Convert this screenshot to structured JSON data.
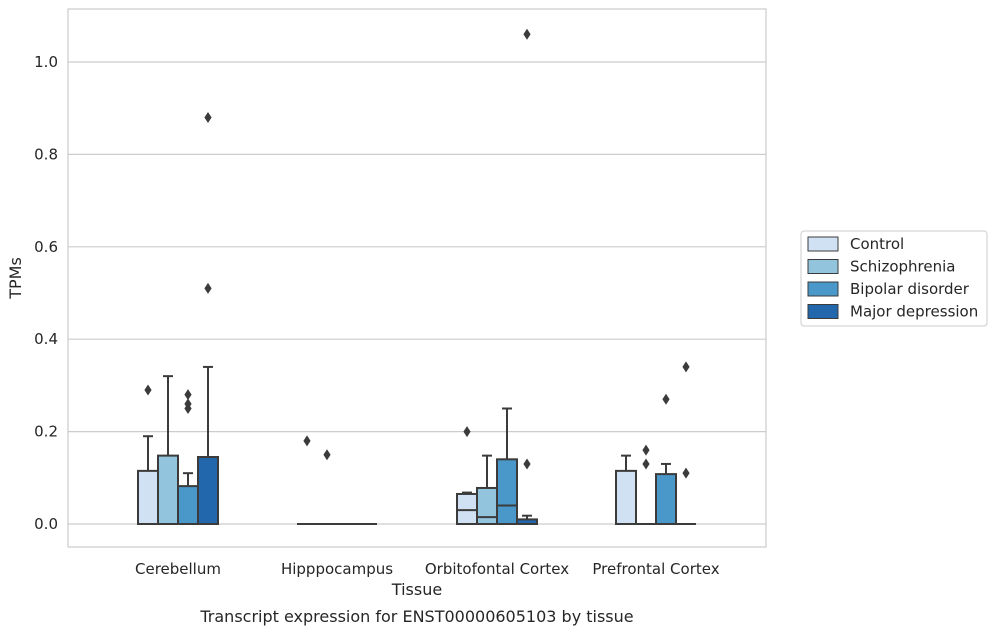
{
  "chart_data": {
    "type": "box",
    "caption": "Transcript expression for ENST00000605103 by tissue",
    "xlabel": "Tissue",
    "ylabel": "TPMs",
    "ylim": [
      -0.05,
      1.12
    ],
    "yticks": [
      0.0,
      0.2,
      0.4,
      0.6,
      0.8,
      1.0
    ],
    "ytick_labels": [
      "0.0",
      "0.2",
      "0.4",
      "0.6",
      "0.8",
      "1.0"
    ],
    "grid": "horizontal",
    "legend_position": "right",
    "categories": [
      "Cerebellum",
      "Hipppocampus",
      "Orbitofontal Cortex",
      "Prefrontal Cortex"
    ],
    "series": [
      {
        "name": "Control",
        "color": "#cfe1f2",
        "boxes": [
          {
            "q1": 0.0,
            "median": 0.0,
            "q3": 0.115,
            "whisker_low": 0.0,
            "whisker_high": 0.19,
            "outliers": [
              0.29
            ]
          },
          {
            "q1": 0.0,
            "median": 0.0,
            "q3": 0.0,
            "whisker_low": 0.0,
            "whisker_high": 0.0,
            "outliers": [
              0.18
            ]
          },
          {
            "q1": 0.0,
            "median": 0.03,
            "q3": 0.065,
            "whisker_low": 0.0,
            "whisker_high": 0.068,
            "outliers": [
              0.2
            ]
          },
          {
            "q1": 0.0,
            "median": 0.0,
            "q3": 0.115,
            "whisker_low": 0.0,
            "whisker_high": 0.148,
            "outliers": []
          }
        ]
      },
      {
        "name": "Schizophrenia",
        "color": "#93c4de",
        "boxes": [
          {
            "q1": 0.0,
            "median": 0.0,
            "q3": 0.148,
            "whisker_low": 0.0,
            "whisker_high": 0.32,
            "outliers": []
          },
          {
            "q1": 0.0,
            "median": 0.0,
            "q3": 0.0,
            "whisker_low": 0.0,
            "whisker_high": 0.0,
            "outliers": [
              0.15
            ]
          },
          {
            "q1": 0.0,
            "median": 0.015,
            "q3": 0.078,
            "whisker_low": 0.0,
            "whisker_high": 0.148,
            "outliers": []
          },
          {
            "q1": 0.0,
            "median": 0.0,
            "q3": 0.0,
            "whisker_low": 0.0,
            "whisker_high": 0.0,
            "outliers": [
              0.13,
              0.16
            ]
          }
        ]
      },
      {
        "name": "Bipolar disorder",
        "color": "#4a98c9",
        "boxes": [
          {
            "q1": 0.0,
            "median": 0.0,
            "q3": 0.082,
            "whisker_low": 0.0,
            "whisker_high": 0.11,
            "outliers": [
              0.25,
              0.26,
              0.28
            ]
          },
          {
            "q1": 0.0,
            "median": 0.0,
            "q3": 0.0,
            "whisker_low": 0.0,
            "whisker_high": 0.0,
            "outliers": []
          },
          {
            "q1": 0.0,
            "median": 0.04,
            "q3": 0.14,
            "whisker_low": 0.0,
            "whisker_high": 0.25,
            "outliers": []
          },
          {
            "q1": 0.0,
            "median": 0.0,
            "q3": 0.108,
            "whisker_low": 0.0,
            "whisker_high": 0.13,
            "outliers": [
              0.27
            ]
          }
        ]
      },
      {
        "name": "Major depression",
        "color": "#2266ac",
        "boxes": [
          {
            "q1": 0.0,
            "median": 0.0,
            "q3": 0.145,
            "whisker_low": 0.0,
            "whisker_high": 0.34,
            "outliers": [
              0.51,
              0.88
            ]
          },
          {
            "q1": 0.0,
            "median": 0.0,
            "q3": 0.0,
            "whisker_low": 0.0,
            "whisker_high": 0.0,
            "outliers": []
          },
          {
            "q1": 0.0,
            "median": 0.0,
            "q3": 0.01,
            "whisker_low": 0.0,
            "whisker_high": 0.018,
            "outliers": [
              0.13,
              1.06
            ]
          },
          {
            "q1": 0.0,
            "median": 0.0,
            "q3": 0.0,
            "whisker_low": 0.0,
            "whisker_high": 0.0,
            "outliers": [
              0.11,
              0.34
            ]
          }
        ]
      }
    ]
  }
}
